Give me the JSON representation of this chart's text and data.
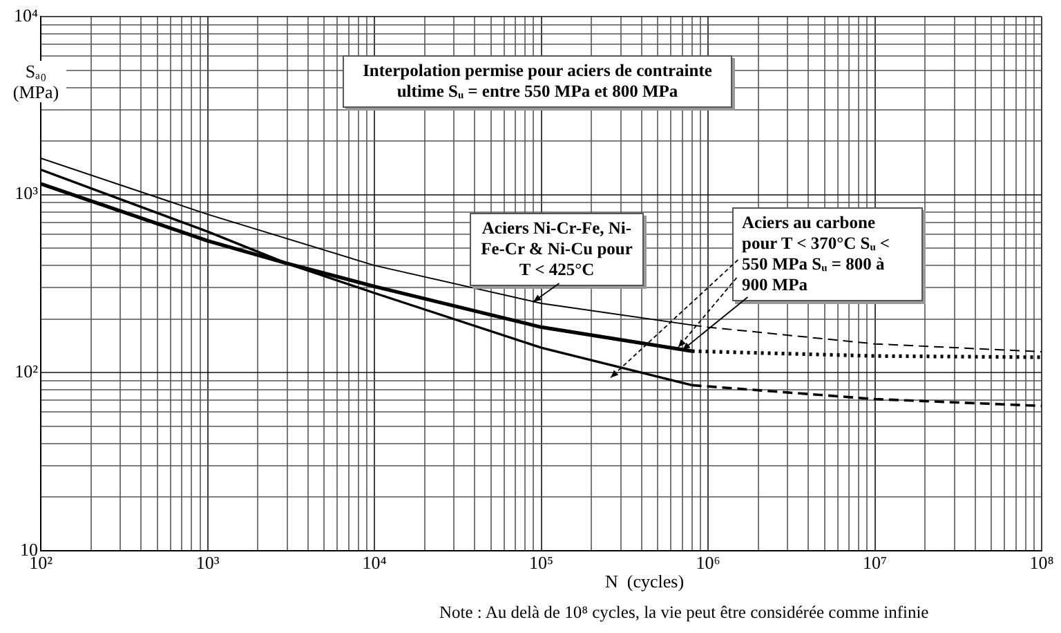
{
  "chart_data": {
    "type": "line",
    "xlabel": "N  (cycles)",
    "ylabel": "Sₐ₀ (MPa)",
    "log": "xy",
    "grid": true,
    "marker": "none",
    "xlim": [
      100,
      100000000
    ],
    "ylim": [
      10,
      10000
    ],
    "xticks": [
      {
        "value": 100,
        "label": "10²"
      },
      {
        "value": 200,
        "label": null
      },
      {
        "value": 300,
        "label": null
      },
      {
        "value": 400,
        "label": null
      },
      {
        "value": 500,
        "label": null
      },
      {
        "value": 600,
        "label": null
      },
      {
        "value": 700,
        "label": null
      },
      {
        "value": 800,
        "label": null
      },
      {
        "value": 900,
        "label": null
      },
      {
        "value": 1000,
        "label": "10³"
      },
      {
        "value": 2000,
        "label": null
      },
      {
        "value": 3000,
        "label": null
      },
      {
        "value": 4000,
        "label": null
      },
      {
        "value": 5000,
        "label": null
      },
      {
        "value": 6000,
        "label": null
      },
      {
        "value": 7000,
        "label": null
      },
      {
        "value": 8000,
        "label": null
      },
      {
        "value": 9000,
        "label": null
      },
      {
        "value": 10000,
        "label": "10⁴"
      },
      {
        "value": 20000,
        "label": null
      },
      {
        "value": 30000,
        "label": null
      },
      {
        "value": 40000,
        "label": null
      },
      {
        "value": 50000,
        "label": null
      },
      {
        "value": 60000,
        "label": null
      },
      {
        "value": 70000,
        "label": null
      },
      {
        "value": 80000,
        "label": null
      },
      {
        "value": 90000,
        "label": null
      },
      {
        "value": 100000,
        "label": "10⁵"
      },
      {
        "value": 200000,
        "label": null
      },
      {
        "value": 300000,
        "label": null
      },
      {
        "value": 400000,
        "label": null
      },
      {
        "value": 500000,
        "label": null
      },
      {
        "value": 600000,
        "label": null
      },
      {
        "value": 700000,
        "label": null
      },
      {
        "value": 800000,
        "label": null
      },
      {
        "value": 900000,
        "label": null
      },
      {
        "value": 1000000,
        "label": "10⁶"
      },
      {
        "value": 2000000,
        "label": null
      },
      {
        "value": 3000000,
        "label": null
      },
      {
        "value": 4000000,
        "label": null
      },
      {
        "value": 5000000,
        "label": null
      },
      {
        "value": 6000000,
        "label": null
      },
      {
        "value": 7000000,
        "label": null
      },
      {
        "value": 8000000,
        "label": null
      },
      {
        "value": 9000000,
        "label": null
      },
      {
        "value": 10000000,
        "label": "10⁷"
      },
      {
        "value": 20000000,
        "label": null
      },
      {
        "value": 30000000,
        "label": null
      },
      {
        "value": 40000000,
        "label": null
      },
      {
        "value": 50000000,
        "label": null
      },
      {
        "value": 60000000,
        "label": null
      },
      {
        "value": 70000000,
        "label": null
      },
      {
        "value": 80000000,
        "label": null
      },
      {
        "value": 90000000,
        "label": null
      },
      {
        "value": 100000000,
        "label": "10⁸"
      }
    ],
    "yticks": [
      10,
      {
        "value": 20,
        "label": null
      },
      {
        "value": 30,
        "label": null
      },
      {
        "value": 40,
        "label": null
      },
      {
        "value": 50,
        "label": null
      },
      {
        "value": 60,
        "label": null
      },
      {
        "value": 70,
        "label": null
      },
      {
        "value": 80,
        "label": null
      },
      {
        "value": 90,
        "label": null
      },
      {
        "value": 100,
        "label": "10²"
      },
      {
        "value": 200,
        "label": null
      },
      {
        "value": 300,
        "label": null
      },
      {
        "value": 400,
        "label": null
      },
      {
        "value": 500,
        "label": null
      },
      {
        "value": 600,
        "label": null
      },
      {
        "value": 700,
        "label": null
      },
      {
        "value": 800,
        "label": null
      },
      {
        "value": 900,
        "label": null
      },
      {
        "value": 1000,
        "label": "10³"
      },
      {
        "value": 2000,
        "label": null
      },
      {
        "value": 3000,
        "label": null
      },
      {
        "value": 4000,
        "label": null
      },
      {
        "value": 5000,
        "label": null
      },
      {
        "value": 6000,
        "label": null
      },
      {
        "value": 7000,
        "label": null
      },
      {
        "value": 8000,
        "label": null
      },
      {
        "value": 9000,
        "label": null
      },
      {
        "value": 10000,
        "label": "10⁴"
      }
    ],
    "series": [
      {
        "color": "#000000",
        "line_style": "solid",
        "x": [
          100,
          1000,
          10000,
          100000,
          800000
        ],
        "values": [
          1600,
          775,
          400,
          245,
          185
        ]
      },
      {
        "color": "#000000",
        "line_style": "dashed",
        "x": [
          800000,
          1000000,
          10000000,
          100000000
        ],
        "values": [
          185,
          180,
          145,
          131
        ]
      },
      {
        "color": "#000000",
        "line_style": "solid",
        "x": [
          100,
          1000,
          3000,
          10000,
          100000,
          800000
        ],
        "values": [
          1150,
          550,
          410,
          305,
          180,
          132
        ]
      },
      {
        "color": "#000000",
        "line_style": "dotted",
        "x": [
          800000,
          10000000,
          100000000
        ],
        "values": [
          132,
          124,
          122
        ]
      },
      {
        "color": "#000000",
        "line_style": "solid",
        "x": [
          100,
          1000,
          3000,
          10000,
          100000,
          800000
        ],
        "values": [
          1380,
          620,
          410,
          280,
          138,
          85
        ]
      },
      {
        "color": "#000000",
        "line_style": "dashed",
        "x": [
          800000,
          10000000,
          100000000
        ],
        "values": [
          85,
          71,
          65
        ]
      }
    ],
    "annotations": [
      "Interpolation permise pour aciers de contrainte ultime Sᵤ = entre 550 MPa et 800 MPa",
      {
        "text": "Aciers Ni-Cr-Fe, Ni-Fe-Cr & Ni-Cu pour T < 425°C",
        "x": 90000,
        "y": 250
      },
      {
        "text": "Aciers au carbone pour T < 370°C Sᵤ < 550 MPa Sᵤ = 800 à 900 MPa",
        "x": 700000,
        "y": 134
      },
      "Note : Au delà de 10⁸ cycles, la vie peut être considérée comme infinie"
    ]
  }
}
